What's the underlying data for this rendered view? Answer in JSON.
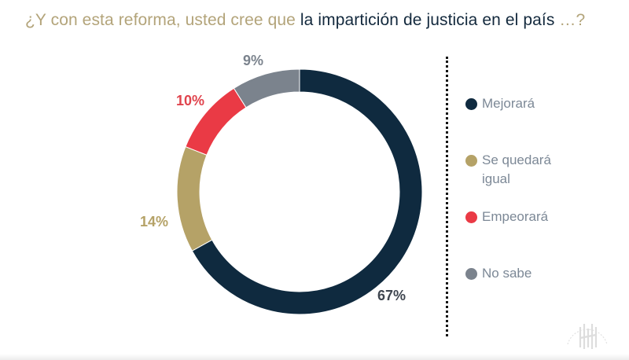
{
  "title": {
    "part1": "¿Y con esta reforma, usted cree que ",
    "part2": "la impartición de justicia en el país",
    "part3": " …?"
  },
  "colors": {
    "title_gold": "#b3a47a",
    "title_dark": "#13293d",
    "legend_text": "#7c8896"
  },
  "chart_data": {
    "type": "pie",
    "subtype": "donut",
    "title": "¿Y con esta reforma, usted cree que la impartición de justicia en el país …?",
    "series": [
      {
        "name": "Mejorará",
        "value": 67,
        "label": "67%",
        "color": "#0f2a3f",
        "label_color": "#3f4650"
      },
      {
        "name": "Se quedará igual",
        "value": 14,
        "label": "14%",
        "color": "#b5a267",
        "label_color": "#b5a267"
      },
      {
        "name": "Empeorará",
        "value": 10,
        "label": "10%",
        "color": "#ea3a45",
        "label_color": "#e0444d"
      },
      {
        "name": "No sabe",
        "value": 9,
        "label": "9%",
        "color": "#7b838d",
        "label_color": "#7b838d"
      }
    ],
    "start": "top",
    "direction": "clockwise",
    "legend_position": "right"
  },
  "legend": {
    "items": [
      {
        "label": "Mejorará",
        "color": "#0f2a3f"
      },
      {
        "label": "Se quedará igual",
        "color": "#b5a267"
      },
      {
        "label": "Empeorará",
        "color": "#ea3a45"
      },
      {
        "label": "No sabe",
        "color": "#7b838d"
      }
    ]
  },
  "watermark": {
    "icon": "institution-seal-icon"
  }
}
